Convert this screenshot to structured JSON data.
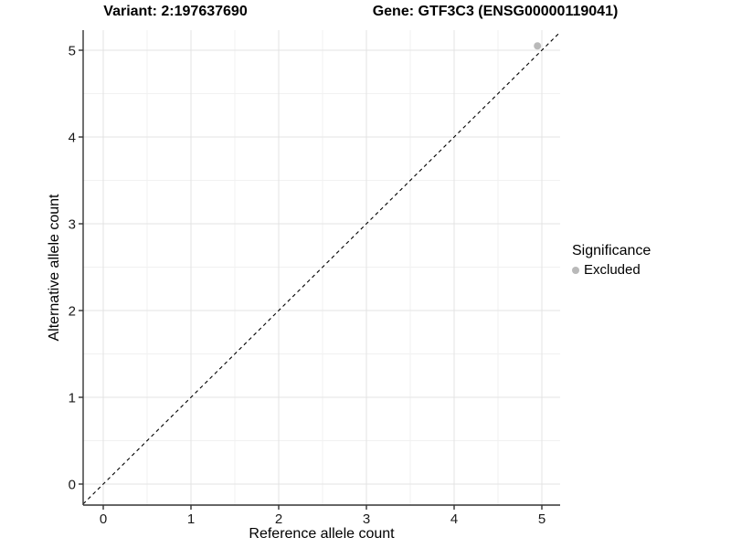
{
  "titles": {
    "variant": "Variant: 2:197637690",
    "gene": "Gene: GTF3C3 (ENSG00000119041)"
  },
  "chart_data": {
    "type": "scatter",
    "title": "Variant: 2:197637690   Gene: GTF3C3 (ENSG00000119041)",
    "xlabel": "Reference allele count",
    "ylabel": "Alternative allele count",
    "xlim": [
      -0.23,
      5.21
    ],
    "ylim": [
      -0.24,
      5.23
    ],
    "xticks": [
      0,
      1,
      2,
      3,
      4,
      5
    ],
    "yticks": [
      0,
      1,
      2,
      3,
      4,
      5
    ],
    "minor_xticks": [
      0.5,
      1.5,
      2.5,
      3.5,
      4.5
    ],
    "minor_yticks": [
      0.5,
      1.5,
      2.5,
      3.5,
      4.5
    ],
    "grid": "major and minor, light gray on white",
    "identity_line": {
      "slope": 1,
      "intercept": 0,
      "style": "dashed",
      "color": "#000000"
    },
    "series": [
      {
        "name": "Excluded",
        "points": [
          {
            "x": 4.95,
            "y": 5.05
          }
        ]
      }
    ],
    "legend": {
      "title": "Significance",
      "position": "right",
      "items": [
        {
          "label": "Excluded",
          "color": "#b9b9b9"
        }
      ]
    },
    "colors": {
      "background": "#ffffff",
      "axis_line": "#333333",
      "tick_mark": "#333333",
      "tick_label": "#1a1a1a",
      "grid_major": "#e3e3e3",
      "grid_minor": "#f1f1f1",
      "point": "#b9b9b9",
      "diagonal": "#000000"
    }
  }
}
